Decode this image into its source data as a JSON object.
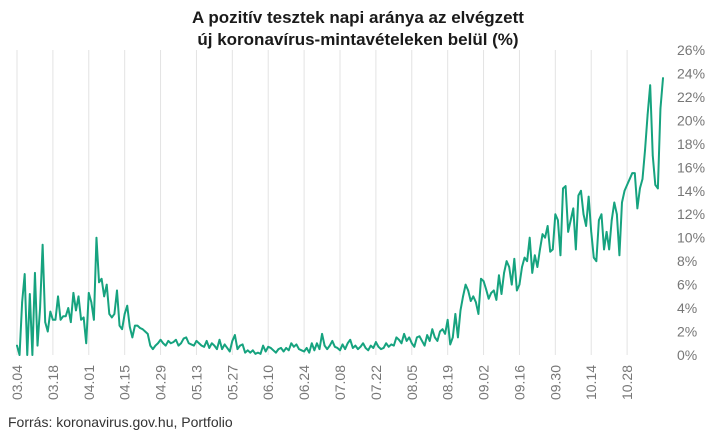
{
  "title_line1": "A pozitív tesztek napi aránya az elvégzett",
  "title_line2": "új koronavírus-mintavételeken belül (%)",
  "source": "Forrás: koronavirus.gov.hu, Portfolio",
  "colors": {
    "line": "#16a37f",
    "grid": "#e3e3e3",
    "axis_text": "#777777"
  },
  "chart_data": {
    "type": "line",
    "title": "A pozitív tesztek napi aránya az elvégzett új koronavírus-mintavételeken belül (%)",
    "xlabel": "",
    "ylabel": "",
    "ylim": [
      0,
      26
    ],
    "y_ticks": [
      0,
      2,
      4,
      6,
      8,
      10,
      12,
      14,
      16,
      18,
      20,
      22,
      24,
      26
    ],
    "y_tick_labels": [
      "0%",
      "2%",
      "4%",
      "6%",
      "8%",
      "10%",
      "12%",
      "14%",
      "16%",
      "18%",
      "20%",
      "22%",
      "24%",
      "26%"
    ],
    "y_axis_position": "right",
    "x_tick_labels": [
      "03.04",
      "03.18",
      "04.01",
      "04.15",
      "04.29",
      "05.13",
      "05.27",
      "06.10",
      "06.24",
      "07.08",
      "07.22",
      "08.05",
      "08.19",
      "09.02",
      "09.16",
      "09.30",
      "10.14",
      "10.28"
    ],
    "x_tick_every_days": 14,
    "start_label": "03.04",
    "grid": "vertical",
    "series": [
      {
        "values": [
          0.8,
          0,
          4.5,
          6.9,
          0,
          5.2,
          0,
          7.0,
          0.8,
          4.0,
          9.4,
          2.8,
          2.0,
          3.7,
          3.0,
          3.0,
          5.0,
          3.0,
          3.3,
          3.3,
          4.0,
          2.8,
          5.3,
          3.8,
          5.0,
          3.0,
          3.2,
          1.0,
          5.3,
          4.5,
          3.0,
          10.0,
          6.2,
          6.5,
          5.0,
          6.0,
          3.5,
          3.2,
          3.5,
          5.5,
          2.5,
          2.2,
          3.5,
          4.2,
          2.4,
          1.5,
          2.5,
          2.5,
          2.3,
          2.2,
          2.0,
          1.8,
          0.8,
          0.5,
          0.8,
          1.0,
          1.3,
          1.0,
          0.8,
          1.2,
          1.0,
          1.1,
          1.3,
          0.8,
          1.0,
          1.4,
          1.5,
          1.0,
          0.9,
          0.8,
          1.2,
          1.0,
          0.8,
          0.7,
          1.2,
          0.6,
          1.0,
          0.8,
          0.5,
          1.3,
          0.5,
          0.9,
          0.6,
          0.3,
          1.2,
          1.7,
          0.5,
          0.8,
          0.9,
          0.2,
          0.4,
          0.2,
          0.4,
          0.1,
          0.2,
          0.1,
          0.8,
          0.3,
          0.7,
          0.6,
          0.4,
          0.2,
          0.5,
          0.6,
          0.3,
          0.6,
          0.4,
          1.0,
          0.7,
          0.9,
          0.5,
          0.4,
          0.3,
          0.6,
          0.2,
          1.0,
          0.4,
          1.0,
          0.5,
          1.8,
          0.8,
          0.5,
          0.8,
          1.2,
          0.7,
          0.6,
          0.4,
          0.9,
          0.5,
          1.0,
          1.3,
          0.6,
          0.8,
          0.5,
          0.7,
          1.0,
          0.6,
          0.4,
          0.8,
          0.6,
          1.1,
          0.7,
          0.5,
          0.6,
          1.0,
          0.7,
          0.9,
          0.8,
          1.5,
          1.3,
          1.0,
          1.8,
          1.2,
          1.5,
          1.0,
          0.7,
          1.5,
          1.6,
          1.2,
          0.8,
          1.7,
          1.2,
          2.2,
          1.5,
          1.2,
          2.0,
          2.2,
          1.8,
          3.0,
          0.9,
          1.5,
          3.5,
          1.5,
          3.8,
          5.0,
          6.0,
          5.5,
          4.6,
          5.0,
          4.5,
          3.5,
          6.5,
          6.3,
          5.6,
          4.8,
          5.3,
          5.5,
          4.7,
          6.8,
          5.2,
          7.0,
          8.0,
          7.5,
          6.0,
          8.2,
          5.5,
          6.0,
          7.5,
          8.3,
          8.0,
          10.0,
          7.0,
          8.5,
          7.5,
          9.0,
          10.3,
          10.0,
          11.0,
          8.8,
          9.0,
          12.0,
          11.5,
          8.5,
          14.2,
          14.4,
          10.5,
          11.5,
          12.5,
          9.0,
          13.6,
          14.0,
          12.0,
          11.0,
          13.5,
          10.5,
          8.3,
          8.0,
          11.5,
          12.0,
          9.0,
          10.5,
          9.0,
          11.5,
          13.0,
          12.0,
          8.5,
          13.0,
          14.0,
          14.5,
          15.0,
          15.5,
          15.5,
          12.5,
          14.2,
          15.0,
          17.5,
          20.5,
          23.0,
          17.0,
          14.5,
          14.2,
          21.0,
          23.6
        ]
      }
    ]
  }
}
